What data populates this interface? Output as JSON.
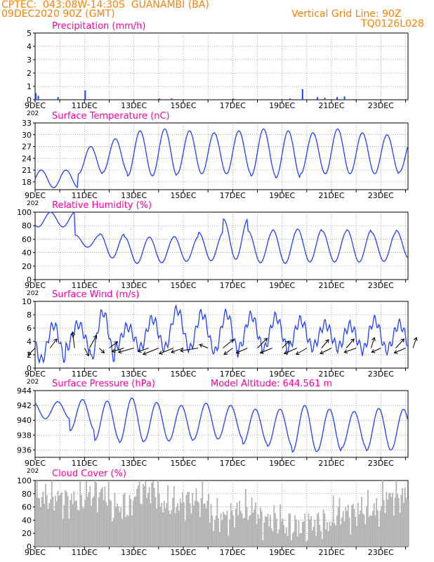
{
  "header": {
    "line1": "CPTEC:  043:08W-14:30S  GUANAMBI (BA)",
    "line2": "09DEC2020 90Z (GMT)",
    "grid_note": "Vertical Grid Line: 90Z",
    "code": "TQ0126L028"
  },
  "colors": {
    "header": "#ff8000",
    "title": "#ff00a0",
    "line": "#2040ff",
    "wind": "#000000",
    "bars": "#b4b4b4"
  },
  "x_tick_labels": [
    "9DEC",
    "11DEC",
    "13DEC",
    "15DEC",
    "17DEC",
    "19DEC",
    "21DEC",
    "23DEC"
  ],
  "year_stub": "202",
  "model_altitude": "Model Altitude: 644.561 m",
  "chart_data": [
    {
      "name": "precipitation",
      "type": "bar",
      "title": "Precipitation (mm/h)",
      "ylim": [
        0,
        5
      ],
      "y_ticks": [
        0,
        1,
        2,
        3,
        4,
        5
      ],
      "x_days": [
        0.0,
        0.1,
        0.9,
        2.0,
        5.0,
        5.5,
        8.0,
        10.3,
        10.8,
        11.4,
        11.7,
        12.2,
        12.5,
        12.9
      ],
      "values": [
        0.5,
        0.3,
        0.2,
        0.7,
        0.1,
        0.1,
        0.1,
        0.1,
        0.8,
        0.2,
        0.15,
        0.2,
        0.25,
        0.05
      ]
    },
    {
      "name": "surface_temperature",
      "type": "line",
      "title": "Surface Temperature (nC)",
      "ylim": [
        16,
        33
      ],
      "y_ticks": [
        18,
        21,
        24,
        27,
        30,
        33
      ],
      "daily_max": [
        21,
        27,
        29,
        31,
        31.5,
        31,
        30.5,
        31,
        31.5,
        31,
        30.5,
        31.5,
        30.5,
        30,
        29,
        30.5,
        30.5
      ],
      "daily_min": [
        16.5,
        20,
        20.5,
        19.5,
        19.5,
        20,
        20,
        20,
        19.5,
        19,
        20,
        20,
        20,
        20,
        20.5,
        20,
        20
      ]
    },
    {
      "name": "relative_humidity",
      "type": "line",
      "title": "Relative Humidity (%)",
      "ylim": [
        0,
        100
      ],
      "y_ticks": [
        0,
        20,
        40,
        60,
        80,
        100
      ],
      "daily_max": [
        100,
        66,
        68,
        63,
        63,
        64,
        70,
        90,
        72,
        74,
        75,
        72,
        74,
        70,
        73,
        70,
        75
      ],
      "daily_min": [
        78,
        48,
        32,
        24,
        25,
        27,
        28,
        30,
        25,
        24,
        26,
        26,
        26,
        27,
        32,
        30,
        32
      ]
    },
    {
      "name": "surface_wind",
      "type": "line",
      "title": "Surface Wind (m/s)",
      "ylim": [
        0,
        10
      ],
      "y_ticks": [
        0,
        2,
        4,
        6,
        8,
        10
      ],
      "daily_max": [
        6.5,
        6.6,
        8.4,
        6.2,
        7.4,
        8.8,
        8.2,
        8.2,
        7.9,
        7.7,
        7.2,
        6.6,
        6.4,
        7.2,
        6.6,
        7.3,
        4.5
      ],
      "daily_min": [
        1.2,
        3.0,
        1.3,
        3.1,
        3.0,
        3.0,
        2.8,
        2.3,
        3.0,
        2.8,
        3.0,
        3.2,
        3.0,
        2.6,
        2.8,
        1.4,
        2.6
      ],
      "vectors": [
        {
          "day": 0.0,
          "u": 1,
          "v": 1
        },
        {
          "day": 0.6,
          "u": -1,
          "v": -1.3
        },
        {
          "day": 1.6,
          "u": 0.3,
          "v": -2.3
        },
        {
          "day": 2.0,
          "u": -0.6,
          "v": 1.1
        },
        {
          "day": 2.2,
          "u": -1,
          "v": -1.8
        },
        {
          "day": 2.6,
          "u": -0.7,
          "v": 0.7
        },
        {
          "day": 3.0,
          "u": -1.2,
          "v": -0.9
        },
        {
          "day": 3.6,
          "u": 1.7,
          "v": 0.5
        },
        {
          "day": 4.0,
          "u": 2.2,
          "v": 0.6
        },
        {
          "day": 4.6,
          "u": 1.5,
          "v": 0.5
        },
        {
          "day": 5.0,
          "u": 2.2,
          "v": 0.9
        },
        {
          "day": 5.6,
          "u": 2,
          "v": 0.8
        },
        {
          "day": 6.0,
          "u": 1.7,
          "v": 0.6
        },
        {
          "day": 6.6,
          "u": 2.5,
          "v": 0.4
        },
        {
          "day": 7.0,
          "u": 1.2,
          "v": -0.5
        },
        {
          "day": 7.6,
          "u": -1.5,
          "v": -1.2
        },
        {
          "day": 8.0,
          "u": 1.2,
          "v": 0.9
        },
        {
          "day": 8.6,
          "u": 1.6,
          "v": 0.7
        },
        {
          "day": 9.0,
          "u": -1.4,
          "v": -1.4
        },
        {
          "day": 9.6,
          "u": 1.7,
          "v": 0.7
        },
        {
          "day": 10.0,
          "u": -1,
          "v": -1
        },
        {
          "day": 10.6,
          "u": 1.8,
          "v": 0.8
        },
        {
          "day": 11.0,
          "u": 1.5,
          "v": 0.9
        },
        {
          "day": 11.6,
          "u": -1,
          "v": -1.2
        },
        {
          "day": 12.0,
          "u": 1.6,
          "v": 0.8
        },
        {
          "day": 12.6,
          "u": -1.1,
          "v": -1.3
        },
        {
          "day": 13.0,
          "u": 1.7,
          "v": 0.6
        },
        {
          "day": 13.6,
          "u": -0.5,
          "v": -1.5
        },
        {
          "day": 14.0,
          "u": 1.3,
          "v": 0.6
        },
        {
          "day": 14.6,
          "u": -1.2,
          "v": -1.3
        },
        {
          "day": 15.0,
          "u": 1.6,
          "v": 0.7
        },
        {
          "day": 15.3,
          "u": -0.5,
          "v": -1.5
        }
      ]
    },
    {
      "name": "surface_pressure",
      "type": "line",
      "title": "Surface Pressure (hPa)",
      "ylim": [
        935,
        944
      ],
      "y_ticks": [
        936,
        938,
        940,
        942,
        944
      ],
      "daily_max": [
        942.5,
        942.8,
        942.6,
        943.0,
        942.4,
        942.0,
        942.3,
        942.0,
        941.5,
        941.5,
        942.0,
        941.5,
        941.2,
        941.6,
        941.5,
        941.3,
        941.2
      ],
      "daily_min": [
        940.2,
        938.6,
        937.3,
        937.0,
        937.2,
        937.2,
        937.4,
        937.5,
        936.8,
        936.5,
        935.7,
        935.8,
        936.3,
        935.9,
        936.0,
        935.5,
        935.0
      ]
    },
    {
      "name": "cloud_cover",
      "type": "bar",
      "title": "Cloud Cover (%)",
      "ylim": [
        0,
        100
      ],
      "y_ticks": [
        0,
        20,
        40,
        60,
        80,
        100
      ],
      "daily_mean": [
        75,
        70,
        80,
        60,
        85,
        65,
        70,
        45,
        55,
        40,
        30,
        35,
        50,
        55,
        75,
        80,
        85
      ]
    }
  ]
}
